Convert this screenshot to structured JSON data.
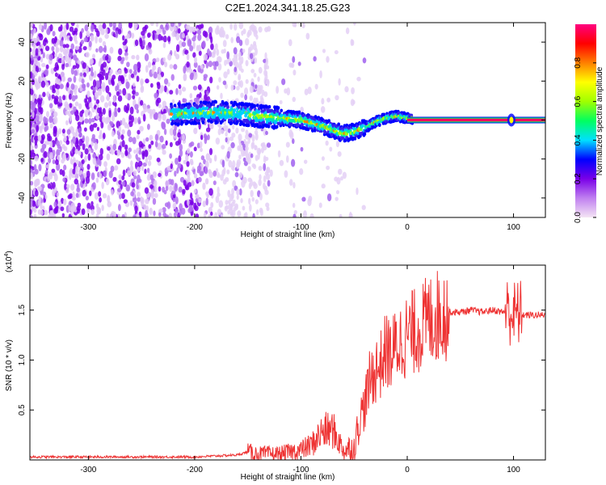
{
  "chart_data": [
    {
      "type": "heatmap",
      "title": "C2E1.2024.341.18.25.G23",
      "xlabel": "Height of straight line (km)",
      "ylabel": "Frequency (Hz)",
      "xlim": [
        -355,
        130
      ],
      "ylim": [
        -50,
        50
      ],
      "xticks": [
        -300,
        -200,
        -100,
        0,
        100
      ],
      "yticks": [
        -40,
        -20,
        0,
        20,
        40
      ],
      "colorbar": {
        "label": "Normalized spectral amplitude",
        "range": [
          0,
          1
        ],
        "ticks": [
          "0.0",
          "0.2",
          "0.4",
          "0.6",
          "0.8"
        ],
        "colormap": [
          "#f4e4f4",
          "#c080f0",
          "#7a00e8",
          "#0000ff",
          "#00e0ff",
          "#00ff60",
          "#a0ff00",
          "#ffff00",
          "#ff8000",
          "#ff0000",
          "#ff0080"
        ]
      },
      "ridge": {
        "x": [
          -220,
          -200,
          -180,
          -160,
          -140,
          -120,
          -100,
          -80,
          -60,
          -50,
          -40,
          -30,
          -20,
          -10,
          0,
          20,
          60,
          100,
          130
        ],
        "frequency": [
          3,
          3.5,
          4,
          3.5,
          2,
          1,
          0,
          -3,
          -7,
          -6,
          -4,
          -1,
          1,
          2,
          1,
          0,
          0,
          0,
          0
        ]
      },
      "noise_region_x": [
        -355,
        -130
      ]
    },
    {
      "type": "line",
      "xlabel": "Height of straight line (km)",
      "ylabel": "SNR (10 * v/v)",
      "scale_label": "(x10",
      "scale_exponent": "4",
      "xlim": [
        -355,
        130
      ],
      "ylim": [
        0,
        1.95
      ],
      "xticks": [
        -300,
        -200,
        -100,
        0,
        100
      ],
      "yticks": [
        "0.5",
        "1.0",
        "1.5"
      ],
      "color": "#ee3333",
      "series": [
        {
          "name": "SNR",
          "x": [
            -355,
            -300,
            -250,
            -200,
            -160,
            -150,
            -140,
            -120,
            -100,
            -90,
            -80,
            -70,
            -60,
            -50,
            -45,
            -40,
            -35,
            -30,
            -25,
            -20,
            -15,
            -10,
            -5,
            0,
            10,
            20,
            30,
            40,
            50,
            60,
            70,
            80,
            90,
            95,
            100,
            105,
            110,
            120,
            130
          ],
          "y": [
            0.03,
            0.03,
            0.03,
            0.03,
            0.05,
            0.08,
            0.06,
            0.06,
            0.1,
            0.15,
            0.28,
            0.3,
            0.1,
            0.12,
            0.4,
            0.55,
            0.8,
            0.9,
            0.95,
            1.1,
            1.05,
            1.15,
            1.2,
            1.25,
            1.3,
            1.4,
            1.45,
            1.48,
            1.48,
            1.5,
            1.48,
            1.5,
            1.48,
            1.5,
            1.45,
            1.47,
            1.45,
            1.45,
            1.45
          ]
        }
      ]
    }
  ]
}
